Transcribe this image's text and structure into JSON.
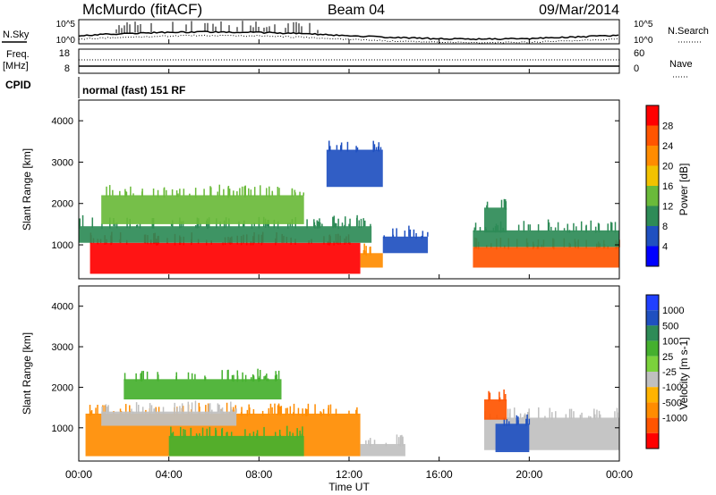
{
  "header": {
    "station": "McMurdo (fitACF)",
    "beam": "Beam 04",
    "date": "09/Mar/2014"
  },
  "top_panels": {
    "nsky_label": "N.Sky",
    "nsearch_label": "N.Search",
    "noise_ticks_left": [
      "10^5",
      "10^0"
    ],
    "noise_ticks_right": [
      "10^5",
      "10^0"
    ],
    "freq_label_1": "Freq.",
    "freq_label_2": "[MHz]",
    "freq_ticks": [
      "18",
      "8"
    ],
    "nave_label": "Nave",
    "nave_ticks": [
      "60",
      "0"
    ],
    "cpid_label": "CPID",
    "cpid_text": "normal (fast) 151 RF"
  },
  "colors": {
    "power_scale": [
      "#0000ff",
      "#1f50c0",
      "#2e8b57",
      "#6aba3a",
      "#f2c200",
      "#ff8c00",
      "#ff5500",
      "#ff0000"
    ],
    "velocity_scale": [
      "#ff0000",
      "#ff5500",
      "#ff8c00",
      "#ffb300",
      "#c0c0c0",
      "#7bd23c",
      "#45b02e",
      "#2e8b57",
      "#1f50c0",
      "#2040ff"
    ]
  },
  "chart_data": [
    {
      "type": "heatmap",
      "name": "power",
      "ylabel": "Slant Range [km]",
      "yticks": [
        "4000",
        "3000",
        "2000",
        "1000"
      ],
      "ylim": [
        180,
        4500
      ],
      "xlim": [
        0,
        24
      ],
      "colorbar_label": "Power [dB]",
      "colorbar_ticks": [
        "28",
        "24",
        "20",
        "16",
        "12",
        "8",
        "4"
      ],
      "colorbar_range": [
        0,
        32
      ],
      "bands": [
        {
          "x0": 0.5,
          "x1": 12.5,
          "y0": 300,
          "y1": 1050,
          "v": 28
        },
        {
          "x0": 12.5,
          "x1": 13.5,
          "y0": 450,
          "y1": 800,
          "v": 20
        },
        {
          "x0": 0.0,
          "x1": 13.0,
          "y0": 1050,
          "y1": 1450,
          "v": 8
        },
        {
          "x0": 1.0,
          "x1": 10.0,
          "y0": 1500,
          "y1": 2200,
          "v": 14
        },
        {
          "x0": 17.5,
          "x1": 24.0,
          "y0": 450,
          "y1": 950,
          "v": 26
        },
        {
          "x0": 17.5,
          "x1": 24.0,
          "y0": 950,
          "y1": 1350,
          "v": 10
        },
        {
          "x0": 13.5,
          "x1": 15.5,
          "y0": 800,
          "y1": 1200,
          "v": 6
        },
        {
          "x0": 11.0,
          "x1": 13.5,
          "y0": 2400,
          "y1": 3300,
          "v": 4
        },
        {
          "x0": 18.0,
          "x1": 19.0,
          "y0": 1300,
          "y1": 1900,
          "v": 10
        }
      ]
    },
    {
      "type": "heatmap",
      "name": "velocity",
      "ylabel": "Slant Range [km]",
      "yticks": [
        "4000",
        "3000",
        "2000",
        "1000"
      ],
      "ylim": [
        180,
        4500
      ],
      "xlim": [
        0,
        24
      ],
      "xlabel": "Time UT",
      "xticks": [
        "00:00",
        "04:00",
        "08:00",
        "12:00",
        "16:00",
        "20:00",
        "00:00"
      ],
      "colorbar_label": "Velocity [m s-1]",
      "colorbar_ticks": [
        "1000",
        "500",
        "100",
        "25",
        "-25",
        "-100",
        "-500",
        "-1000"
      ],
      "bands": [
        {
          "x0": 0.3,
          "x1": 12.5,
          "y0": 300,
          "y1": 1350,
          "v": -100
        },
        {
          "x0": 1.0,
          "x1": 7.0,
          "y0": 1050,
          "y1": 1400,
          "v": 0
        },
        {
          "x0": 4.0,
          "x1": 10.0,
          "y0": 300,
          "y1": 800,
          "v": 100
        },
        {
          "x0": 12.5,
          "x1": 14.5,
          "y0": 300,
          "y1": 600,
          "v": 0
        },
        {
          "x0": 18.0,
          "x1": 24.0,
          "y0": 450,
          "y1": 1250,
          "v": 0
        },
        {
          "x0": 18.5,
          "x1": 20.0,
          "y0": 400,
          "y1": 1100,
          "v": 500
        },
        {
          "x0": 18.0,
          "x1": 19.0,
          "y0": 1200,
          "y1": 1700,
          "v": -500
        },
        {
          "x0": 2.0,
          "x1": 9.0,
          "y0": 1700,
          "y1": 2200,
          "v": 100
        }
      ]
    }
  ]
}
